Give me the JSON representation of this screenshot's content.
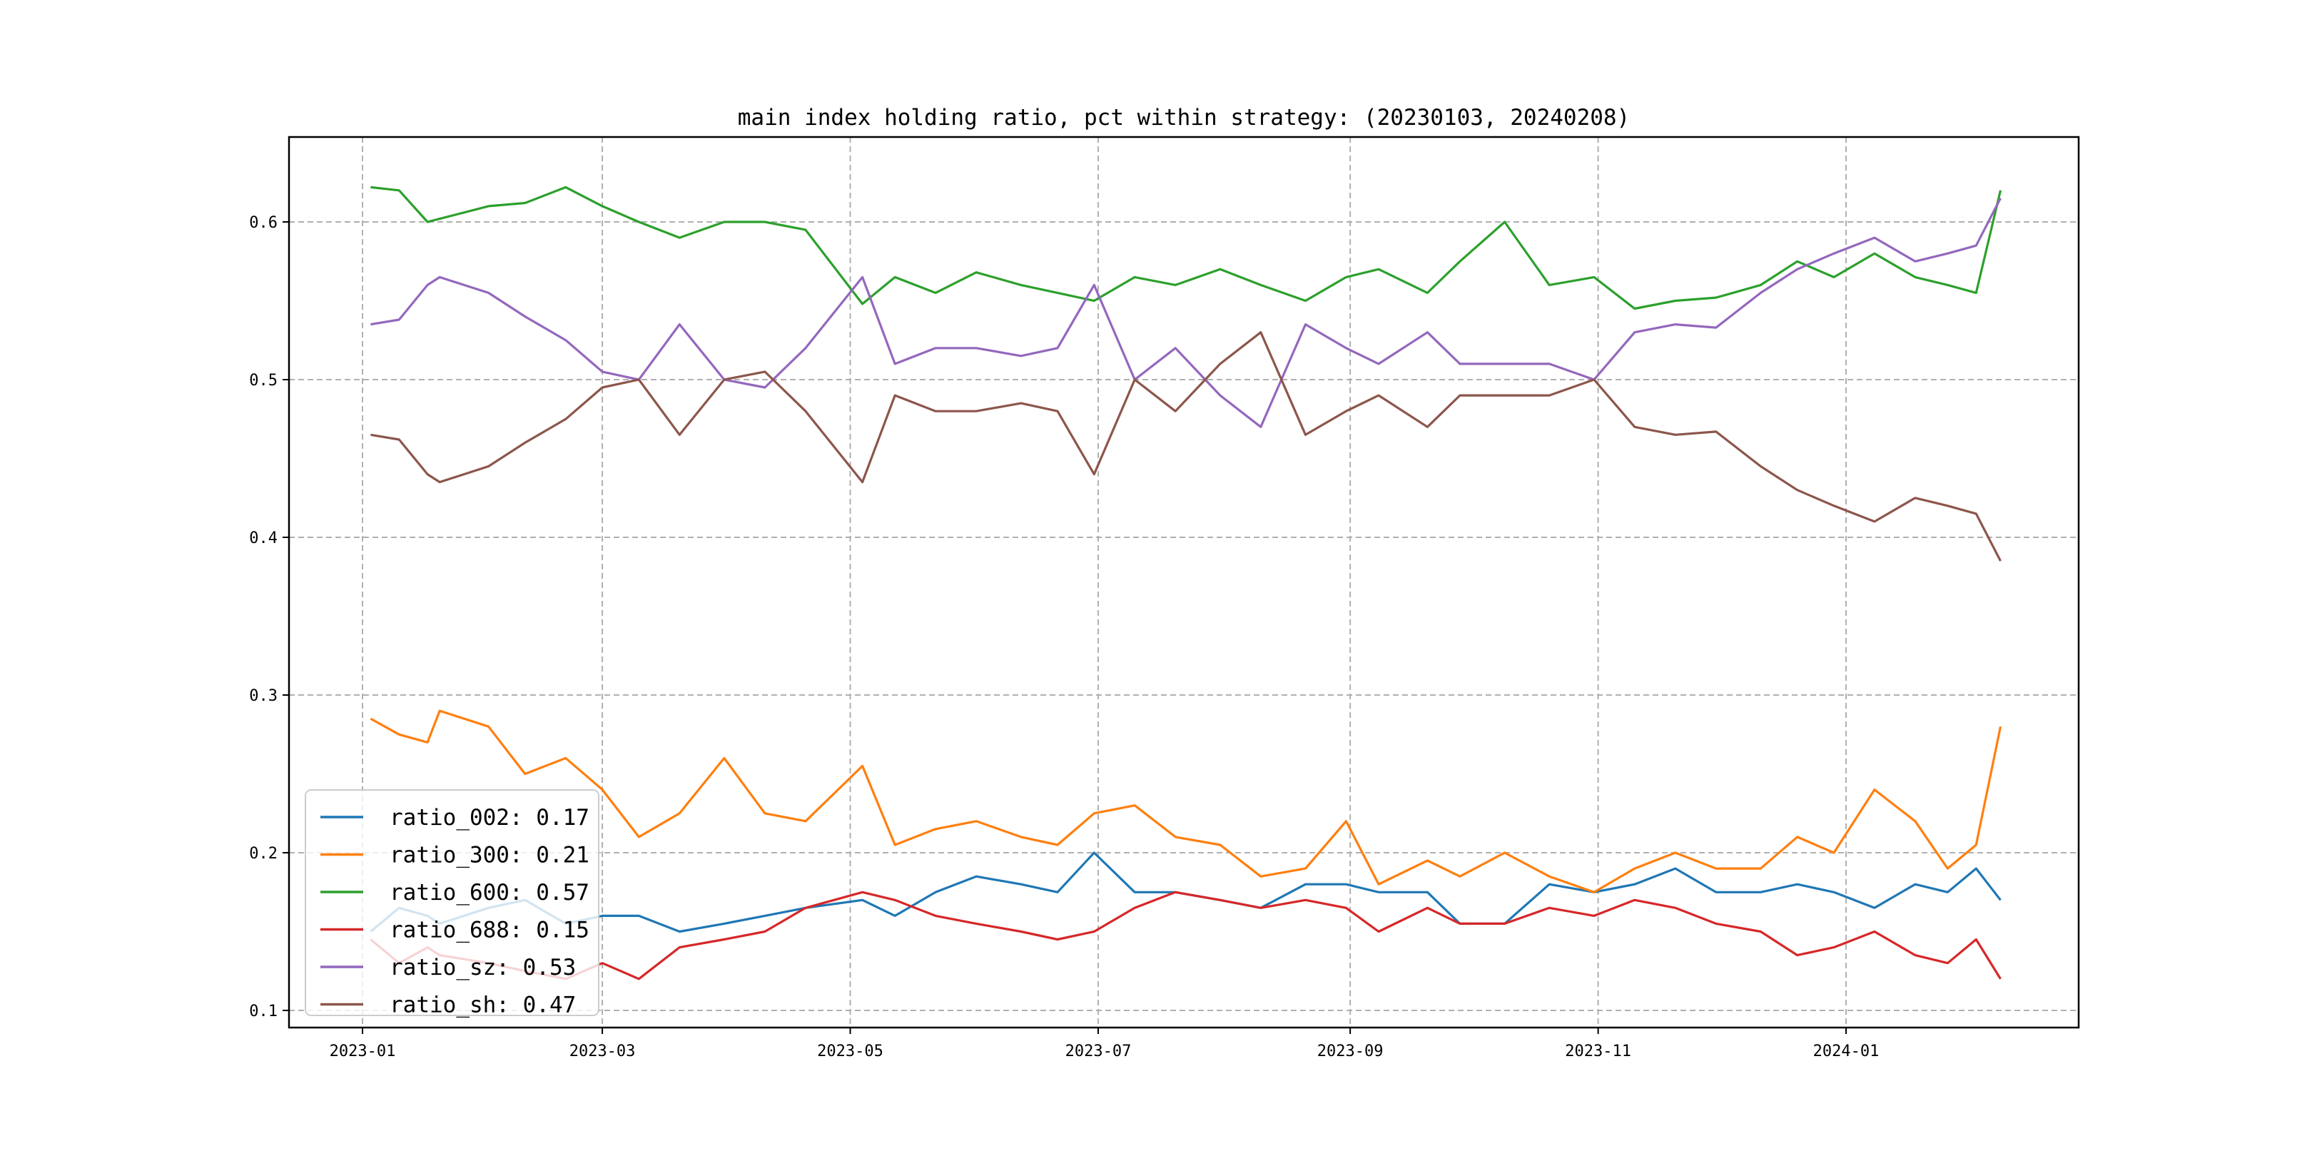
{
  "chart_data": {
    "type": "line",
    "title": "main index holding ratio, pct within strategy: (20230103, 20240208)",
    "xlabel": "",
    "ylabel": "",
    "ylim": [
      0.089,
      0.654
    ],
    "xlim": [
      "2022-12-13",
      "2024-02-27"
    ],
    "grid": true,
    "legend_position": "lower-left",
    "x_ticks": [
      "2023-01",
      "2023-03",
      "2023-05",
      "2023-07",
      "2023-09",
      "2023-11",
      "2024-01"
    ],
    "y_ticks": [
      "0.1",
      "0.2",
      "0.3",
      "0.4",
      "0.5",
      "0.6"
    ],
    "x": [
      "2023-01-03",
      "2023-01-10",
      "2023-01-17",
      "2023-01-20",
      "2023-02-01",
      "2023-02-10",
      "2023-02-20",
      "2023-03-01",
      "2023-03-10",
      "2023-03-20",
      "2023-03-31",
      "2023-04-10",
      "2023-04-20",
      "2023-05-04",
      "2023-05-12",
      "2023-05-22",
      "2023-06-01",
      "2023-06-12",
      "2023-06-21",
      "2023-06-30",
      "2023-07-10",
      "2023-07-20",
      "2023-07-31",
      "2023-08-10",
      "2023-08-21",
      "2023-08-31",
      "2023-09-08",
      "2023-09-20",
      "2023-09-28",
      "2023-10-09",
      "2023-10-20",
      "2023-10-31",
      "2023-11-10",
      "2023-11-20",
      "2023-11-30",
      "2023-12-11",
      "2023-12-20",
      "2023-12-29",
      "2024-01-08",
      "2024-01-18",
      "2024-01-26",
      "2024-02-02",
      "2024-02-08"
    ],
    "series": [
      {
        "name": "ratio_002",
        "legend": "ratio_002: 0.17",
        "color": "#1f77b4",
        "values": [
          0.15,
          0.165,
          0.16,
          0.155,
          0.165,
          0.17,
          0.155,
          0.16,
          0.16,
          0.15,
          0.155,
          0.16,
          0.165,
          0.17,
          0.16,
          0.175,
          0.185,
          0.18,
          0.175,
          0.2,
          0.175,
          0.175,
          0.17,
          0.165,
          0.18,
          0.18,
          0.175,
          0.175,
          0.155,
          0.155,
          0.18,
          0.175,
          0.18,
          0.19,
          0.175,
          0.175,
          0.18,
          0.175,
          0.165,
          0.18,
          0.175,
          0.19,
          0.17
        ]
      },
      {
        "name": "ratio_300",
        "legend": "ratio_300: 0.21",
        "color": "#ff7f0e",
        "values": [
          0.285,
          0.275,
          0.27,
          0.29,
          0.28,
          0.25,
          0.26,
          0.24,
          0.21,
          0.225,
          0.26,
          0.225,
          0.22,
          0.255,
          0.205,
          0.215,
          0.22,
          0.21,
          0.205,
          0.225,
          0.23,
          0.21,
          0.205,
          0.185,
          0.19,
          0.22,
          0.18,
          0.195,
          0.185,
          0.2,
          0.185,
          0.175,
          0.19,
          0.2,
          0.19,
          0.19,
          0.21,
          0.2,
          0.24,
          0.22,
          0.19,
          0.205,
          0.28
        ]
      },
      {
        "name": "ratio_600",
        "legend": "ratio_600: 0.57",
        "color": "#2ca02c",
        "values": [
          0.622,
          0.62,
          0.6,
          0.602,
          0.61,
          0.612,
          0.622,
          0.61,
          0.6,
          0.59,
          0.6,
          0.6,
          0.595,
          0.548,
          0.565,
          0.555,
          0.568,
          0.56,
          0.555,
          0.55,
          0.565,
          0.56,
          0.57,
          0.56,
          0.55,
          0.565,
          0.57,
          0.555,
          0.575,
          0.6,
          0.56,
          0.565,
          0.545,
          0.55,
          0.552,
          0.56,
          0.575,
          0.565,
          0.58,
          0.565,
          0.56,
          0.555,
          0.62
        ]
      },
      {
        "name": "ratio_688",
        "legend": "ratio_688: 0.15",
        "color": "#d62728",
        "values": [
          0.145,
          0.13,
          0.14,
          0.135,
          0.13,
          0.125,
          0.12,
          0.13,
          0.12,
          0.14,
          0.145,
          0.15,
          0.165,
          0.175,
          0.17,
          0.16,
          0.155,
          0.15,
          0.145,
          0.15,
          0.165,
          0.175,
          0.17,
          0.165,
          0.17,
          0.165,
          0.15,
          0.165,
          0.155,
          0.155,
          0.165,
          0.16,
          0.17,
          0.165,
          0.155,
          0.15,
          0.135,
          0.14,
          0.15,
          0.135,
          0.13,
          0.145,
          0.12
        ]
      },
      {
        "name": "ratio_sz",
        "legend": "ratio_sz: 0.53",
        "color": "#9467bd",
        "values": [
          0.535,
          0.538,
          0.56,
          0.565,
          0.555,
          0.54,
          0.525,
          0.505,
          0.5,
          0.535,
          0.5,
          0.495,
          0.52,
          0.565,
          0.51,
          0.52,
          0.52,
          0.515,
          0.52,
          0.56,
          0.5,
          0.52,
          0.49,
          0.47,
          0.535,
          0.52,
          0.51,
          0.53,
          0.51,
          0.51,
          0.51,
          0.5,
          0.53,
          0.535,
          0.533,
          0.555,
          0.57,
          0.58,
          0.59,
          0.575,
          0.58,
          0.585,
          0.615
        ]
      },
      {
        "name": "ratio_sh",
        "legend": "ratio_sh: 0.47",
        "color": "#8c564b",
        "values": [
          0.465,
          0.462,
          0.44,
          0.435,
          0.445,
          0.46,
          0.475,
          0.495,
          0.5,
          0.465,
          0.5,
          0.505,
          0.48,
          0.435,
          0.49,
          0.48,
          0.48,
          0.485,
          0.48,
          0.44,
          0.5,
          0.48,
          0.51,
          0.53,
          0.465,
          0.48,
          0.49,
          0.47,
          0.49,
          0.49,
          0.49,
          0.5,
          0.47,
          0.465,
          0.467,
          0.445,
          0.43,
          0.42,
          0.41,
          0.425,
          0.42,
          0.415,
          0.385
        ]
      }
    ]
  }
}
